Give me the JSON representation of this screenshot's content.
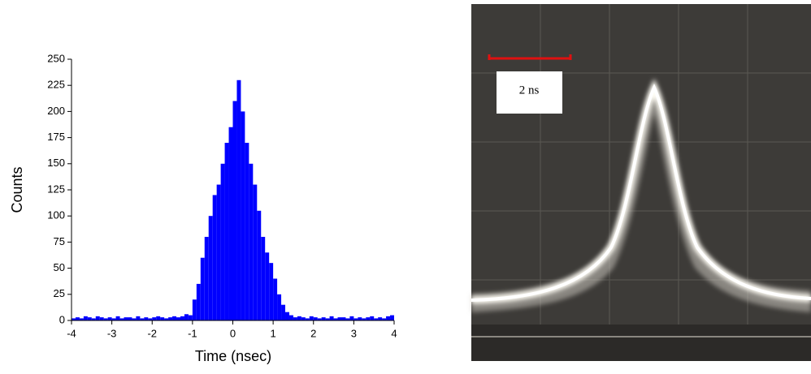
{
  "chart_data": {
    "type": "histogram",
    "xlabel": "Time (nsec)",
    "ylabel": "Counts",
    "bins": [
      -4,
      -3.9,
      -3.8,
      -3.7,
      -3.6,
      -3.5,
      -3.4,
      -3.3,
      -3.2,
      -3.1,
      -3,
      -2.9,
      -2.8,
      -2.7,
      -2.6,
      -2.5,
      -2.4,
      -2.3,
      -2.2,
      -2.1,
      -2,
      -1.9,
      -1.8,
      -1.7,
      -1.6,
      -1.5,
      -1.4,
      -1.3,
      -1.2,
      -1.1,
      -1,
      -0.9,
      -0.8,
      -0.7,
      -0.6,
      -0.5,
      -0.4,
      -0.3,
      -0.2,
      -0.1,
      0,
      0.1,
      0.2,
      0.3,
      0.4,
      0.5,
      0.6,
      0.7,
      0.8,
      0.9,
      1,
      1.1,
      1.2,
      1.3,
      1.4,
      1.5,
      1.6,
      1.7,
      1.8,
      1.9,
      2,
      2.1,
      2.2,
      2.3,
      2.4,
      2.5,
      2.6,
      2.7,
      2.8,
      2.9,
      3,
      3.1,
      3.2,
      3.3,
      3.4,
      3.5,
      3.6,
      3.7,
      3.8,
      3.9,
      4
    ],
    "values": [
      2,
      3,
      2,
      4,
      3,
      2,
      4,
      3,
      2,
      3,
      2,
      4,
      2,
      3,
      3,
      2,
      4,
      2,
      3,
      2,
      3,
      4,
      3,
      2,
      3,
      4,
      3,
      4,
      6,
      5,
      20,
      35,
      60,
      80,
      100,
      120,
      130,
      150,
      170,
      185,
      210,
      230,
      200,
      170,
      150,
      130,
      105,
      80,
      65,
      55,
      40,
      25,
      15,
      8,
      5,
      3,
      4,
      3,
      2,
      4,
      3,
      2,
      3,
      2,
      4,
      2,
      3,
      3,
      2,
      4,
      2,
      3,
      2,
      3,
      4,
      2,
      3,
      2,
      4,
      5
    ],
    "color": "#0000ff",
    "xlim": [
      -4,
      4
    ],
    "xticks": [
      -4,
      -3,
      -2,
      -1,
      0,
      1,
      2,
      3,
      4
    ],
    "ylim": [
      0,
      250
    ],
    "yticks": [
      0,
      25,
      50,
      75,
      100,
      125,
      150,
      175,
      200,
      225,
      250
    ]
  },
  "photo": {
    "scale_label": "2 ns"
  }
}
